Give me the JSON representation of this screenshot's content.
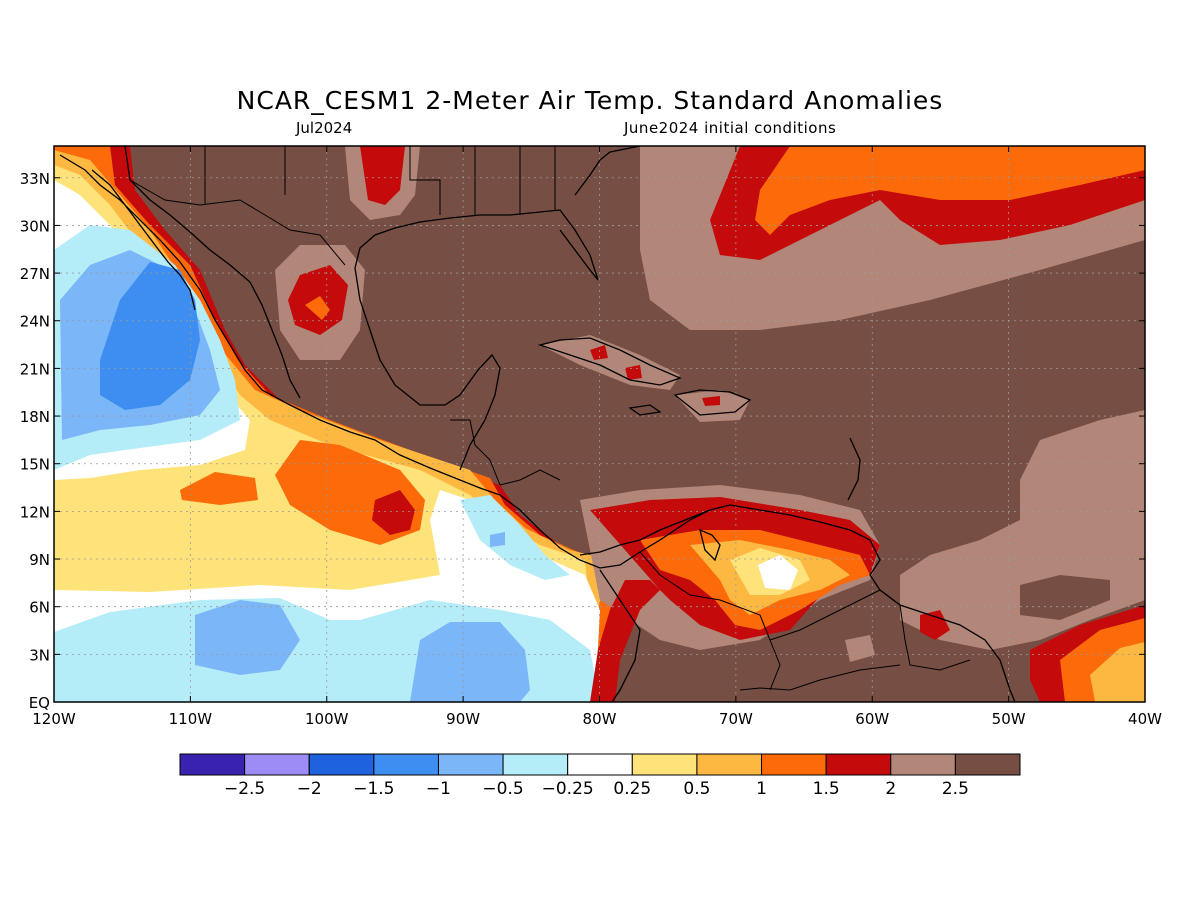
{
  "title": "NCAR_CESM1 2-Meter Air Temp. Standard Anomalies",
  "subtitle_left": "Jul2024",
  "subtitle_right": "June2024 initial conditions",
  "map": {
    "lon_min": -120,
    "lon_max": -40,
    "lat_min": 0,
    "lat_max": 35,
    "lat_ticks": [
      {
        "value": 33,
        "label": "33N"
      },
      {
        "value": 30,
        "label": "30N"
      },
      {
        "value": 27,
        "label": "27N"
      },
      {
        "value": 24,
        "label": "24N"
      },
      {
        "value": 21,
        "label": "21N"
      },
      {
        "value": 18,
        "label": "18N"
      },
      {
        "value": 15,
        "label": "15N"
      },
      {
        "value": 12,
        "label": "12N"
      },
      {
        "value": 9,
        "label": "9N"
      },
      {
        "value": 6,
        "label": "6N"
      },
      {
        "value": 3,
        "label": "3N"
      },
      {
        "value": 0,
        "label": "EQ"
      }
    ],
    "lon_ticks": [
      {
        "value": -120,
        "label": "120W"
      },
      {
        "value": -110,
        "label": "110W"
      },
      {
        "value": -100,
        "label": "100W"
      },
      {
        "value": -90,
        "label": "90W"
      },
      {
        "value": -80,
        "label": "80W"
      },
      {
        "value": -70,
        "label": "70W"
      },
      {
        "value": -60,
        "label": "60W"
      },
      {
        "value": -50,
        "label": "50W"
      },
      {
        "value": -40,
        "label": "40W"
      }
    ],
    "grid": true
  },
  "colorbar": {
    "colors": [
      "#3a22b0",
      "#9e8cf6",
      "#1f62e0",
      "#3d8ef0",
      "#7ab6f8",
      "#b4ecf8",
      "#ffffff",
      "#fee27a",
      "#fdb842",
      "#fc6a0a",
      "#c40a0a",
      "#b2877a",
      "#764e44"
    ],
    "labels": [
      "-2.5",
      "-2",
      "-1.5",
      "-1",
      "-0.5",
      "-0.25",
      "0.25",
      "0.5",
      "1",
      "1.5",
      "2",
      "2.5"
    ]
  }
}
